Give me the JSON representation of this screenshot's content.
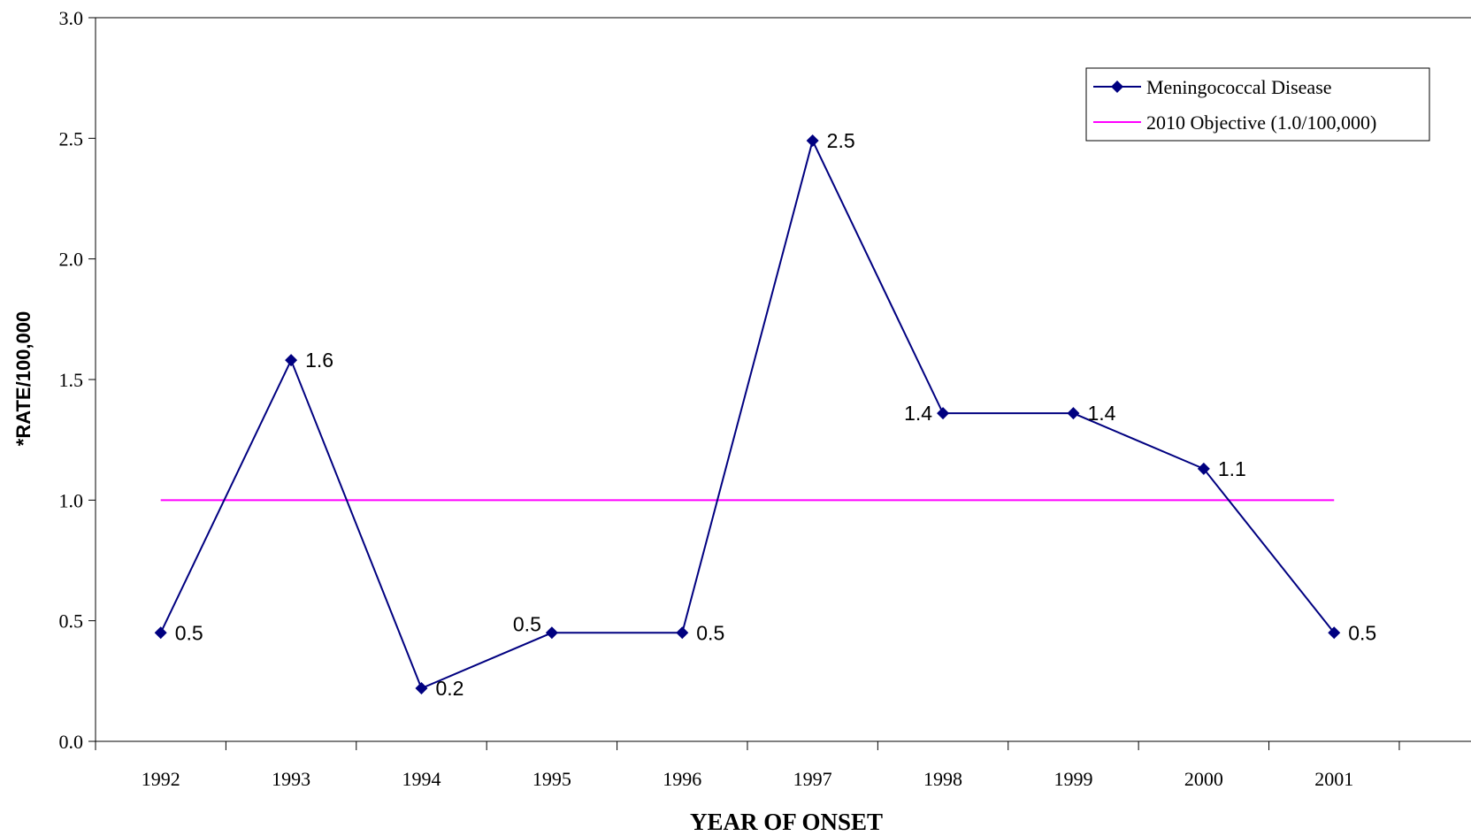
{
  "chart_data": {
    "type": "line",
    "title": "",
    "xlabel": "YEAR OF ONSET",
    "ylabel": "*RATE/100,000",
    "categories": [
      "1992",
      "1993",
      "1994",
      "1995",
      "1996",
      "1997",
      "1998",
      "1999",
      "2000",
      "2001"
    ],
    "ylim": [
      0,
      3.0
    ],
    "yticks": [
      "0.0",
      "0.5",
      "1.0",
      "1.5",
      "2.0",
      "2.5",
      "3.0"
    ],
    "grid": false,
    "legend_position": "top-right",
    "series": [
      {
        "name": "Meningococcal Disease",
        "color": "#000080",
        "marker": "diamond",
        "values": [
          0.45,
          1.58,
          0.22,
          0.45,
          0.45,
          2.49,
          1.36,
          1.36,
          1.13,
          0.45
        ],
        "labels": [
          "0.5",
          "1.6",
          "0.2",
          "0.5",
          "0.5",
          "2.5",
          "1.4",
          "1.4",
          "1.1",
          "0.5"
        ]
      },
      {
        "name": "2010 Objective (1.0/100,000)",
        "color": "#FF00FF",
        "marker": "none",
        "values": [
          1.0,
          1.0,
          1.0,
          1.0,
          1.0,
          1.0,
          1.0,
          1.0,
          1.0,
          1.0
        ]
      }
    ]
  }
}
